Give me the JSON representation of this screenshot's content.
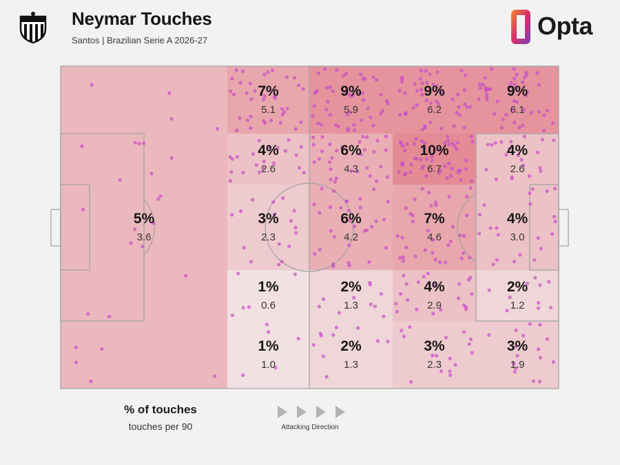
{
  "header": {
    "title": "Neymar Touches",
    "subtitle": "Santos | Brazilian Serie A 2026-27",
    "brand": "Opta"
  },
  "legend": {
    "title": "% of touches",
    "subtitle": "touches per 90",
    "direction_label": "Attacking Direction"
  },
  "colors": {
    "background": "#f2f2f2",
    "pitch_lines": "#a4a4a4",
    "touch_dot": "#cf4fcf",
    "heat_low": "#f3efef",
    "heat_high": "#e48c96",
    "opta_gradient": [
      "#f08a2a",
      "#d62f6f",
      "#7c3fb5"
    ]
  },
  "chart_data": {
    "type": "heatmap",
    "orientation": "attacking left to right",
    "zones": [
      {
        "zone": "own half",
        "pct_label": "5%",
        "per90_label": "3.6",
        "pct": 5,
        "per90": 3.6
      },
      {
        "zone": "row 1, column 1",
        "pct_label": "7%",
        "per90_label": "5.1",
        "pct": 7,
        "per90": 5.1
      },
      {
        "zone": "row 1, column 2",
        "pct_label": "9%",
        "per90_label": "5.9",
        "pct": 9,
        "per90": 5.9
      },
      {
        "zone": "row 1, column 3",
        "pct_label": "9%",
        "per90_label": "6.2",
        "pct": 9,
        "per90": 6.2
      },
      {
        "zone": "row 1, column 4",
        "pct_label": "9%",
        "per90_label": "6.1",
        "pct": 9,
        "per90": 6.1
      },
      {
        "zone": "row 2, column 1",
        "pct_label": "4%",
        "per90_label": "2.6",
        "pct": 4,
        "per90": 2.6
      },
      {
        "zone": "row 2, column 2",
        "pct_label": "6%",
        "per90_label": "4.3",
        "pct": 6,
        "per90": 4.3
      },
      {
        "zone": "row 2, column 3",
        "pct_label": "10%",
        "per90_label": "6.7",
        "pct": 10,
        "per90": 6.7
      },
      {
        "zone": "row 2, column 4",
        "pct_label": "4%",
        "per90_label": "2.6",
        "pct": 4,
        "per90": 2.6
      },
      {
        "zone": "row 3, column 1",
        "pct_label": "3%",
        "per90_label": "2.3",
        "pct": 3,
        "per90": 2.3
      },
      {
        "zone": "row 3, column 2",
        "pct_label": "6%",
        "per90_label": "4.2",
        "pct": 6,
        "per90": 4.2
      },
      {
        "zone": "row 3, column 3",
        "pct_label": "7%",
        "per90_label": "4.6",
        "pct": 7,
        "per90": 4.6
      },
      {
        "zone": "row 3, column 4",
        "pct_label": "4%",
        "per90_label": "3.0",
        "pct": 4,
        "per90": 3.0
      },
      {
        "zone": "row 4, column 1",
        "pct_label": "1%",
        "per90_label": "0.6",
        "pct": 1,
        "per90": 0.6
      },
      {
        "zone": "row 4, column 2",
        "pct_label": "2%",
        "per90_label": "1.3",
        "pct": 2,
        "per90": 1.3
      },
      {
        "zone": "row 4, column 3",
        "pct_label": "4%",
        "per90_label": "2.9",
        "pct": 4,
        "per90": 2.9
      },
      {
        "zone": "row 4, column 4",
        "pct_label": "2%",
        "per90_label": "1.2",
        "pct": 2,
        "per90": 1.2
      },
      {
        "zone": "row 5, column 1",
        "pct_label": "1%",
        "per90_label": "1.0",
        "pct": 1,
        "per90": 1.0
      },
      {
        "zone": "row 5, column 2",
        "pct_label": "2%",
        "per90_label": "1.3",
        "pct": 2,
        "per90": 1.3
      },
      {
        "zone": "row 5, column 3",
        "pct_label": "3%",
        "per90_label": "2.3",
        "pct": 3,
        "per90": 2.3
      },
      {
        "zone": "row 5, column 4",
        "pct_label": "3%",
        "per90_label": "1.9",
        "pct": 3,
        "per90": 1.9
      }
    ]
  }
}
